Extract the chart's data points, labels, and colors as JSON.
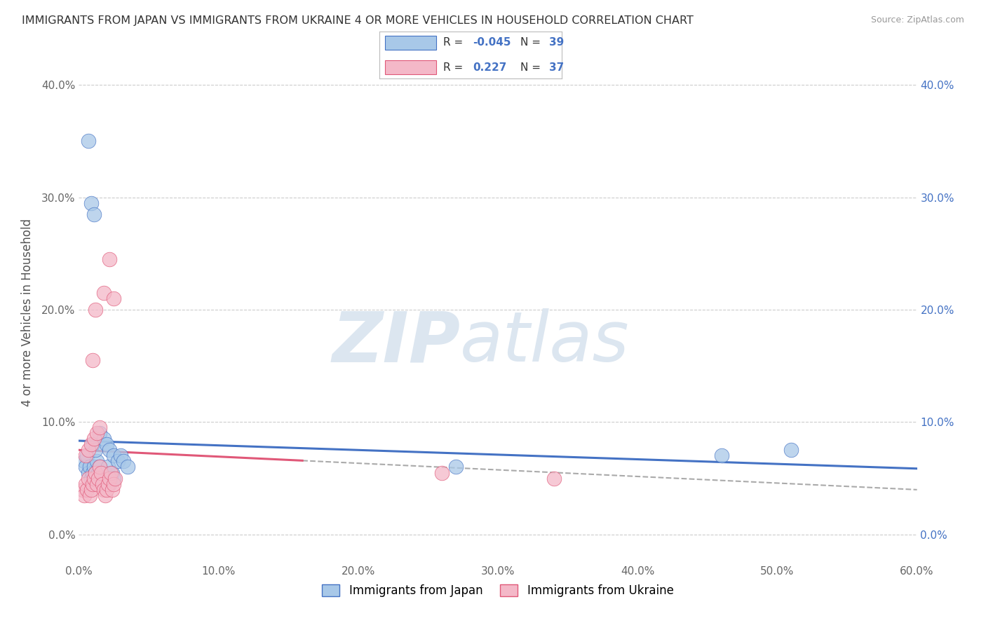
{
  "title": "IMMIGRANTS FROM JAPAN VS IMMIGRANTS FROM UKRAINE 4 OR MORE VEHICLES IN HOUSEHOLD CORRELATION CHART",
  "source": "Source: ZipAtlas.com",
  "ylabel": "4 or more Vehicles in Household",
  "legend_japan": "Immigrants from Japan",
  "legend_ukraine": "Immigrants from Ukraine",
  "R_japan": -0.045,
  "N_japan": 39,
  "R_ukraine": 0.227,
  "N_ukraine": 37,
  "color_japan": "#a8c8e8",
  "color_ukraine": "#f4b8c8",
  "line_color_japan": "#4472c4",
  "line_color_ukraine": "#e05878",
  "japan_x": [
    0.004,
    0.005,
    0.006,
    0.007,
    0.008,
    0.009,
    0.01,
    0.011,
    0.012,
    0.013,
    0.014,
    0.015,
    0.016,
    0.017,
    0.018,
    0.019,
    0.02,
    0.021,
    0.022,
    0.023,
    0.024,
    0.025,
    0.01,
    0.012,
    0.015,
    0.018,
    0.02,
    0.022,
    0.025,
    0.028,
    0.03,
    0.032,
    0.035,
    0.007,
    0.009,
    0.011,
    0.27,
    0.46,
    0.51
  ],
  "japan_y": [
    0.065,
    0.06,
    0.07,
    0.055,
    0.06,
    0.05,
    0.055,
    0.06,
    0.055,
    0.065,
    0.055,
    0.06,
    0.05,
    0.055,
    0.045,
    0.055,
    0.05,
    0.06,
    0.045,
    0.05,
    0.055,
    0.05,
    0.08,
    0.075,
    0.09,
    0.085,
    0.08,
    0.075,
    0.07,
    0.065,
    0.07,
    0.065,
    0.06,
    0.35,
    0.295,
    0.285,
    0.06,
    0.07,
    0.075
  ],
  "ukraine_x": [
    0.003,
    0.004,
    0.005,
    0.006,
    0.007,
    0.008,
    0.009,
    0.01,
    0.011,
    0.012,
    0.013,
    0.014,
    0.015,
    0.016,
    0.017,
    0.018,
    0.019,
    0.02,
    0.021,
    0.022,
    0.023,
    0.024,
    0.025,
    0.026,
    0.005,
    0.007,
    0.009,
    0.011,
    0.013,
    0.015,
    0.01,
    0.012,
    0.018,
    0.022,
    0.025,
    0.26,
    0.34
  ],
  "ukraine_y": [
    0.04,
    0.035,
    0.045,
    0.04,
    0.05,
    0.035,
    0.04,
    0.045,
    0.05,
    0.055,
    0.045,
    0.05,
    0.06,
    0.055,
    0.045,
    0.04,
    0.035,
    0.04,
    0.045,
    0.05,
    0.055,
    0.04,
    0.045,
    0.05,
    0.07,
    0.075,
    0.08,
    0.085,
    0.09,
    0.095,
    0.155,
    0.2,
    0.215,
    0.245,
    0.21,
    0.055,
    0.05
  ],
  "xlim": [
    0.0,
    0.6
  ],
  "ylim": [
    -0.025,
    0.42
  ],
  "yticks": [
    0.0,
    0.1,
    0.2,
    0.3,
    0.4
  ],
  "ytick_labels": [
    "0.0%",
    "10.0%",
    "20.0%",
    "30.0%",
    "40.0%"
  ],
  "xticks": [
    0.0,
    0.1,
    0.2,
    0.3,
    0.4,
    0.5,
    0.6
  ],
  "xtick_labels": [
    "0.0%",
    "10.0%",
    "20.0%",
    "30.0%",
    "40.0%",
    "50.0%",
    "60.0%"
  ],
  "background_color": "#ffffff",
  "grid_color": "#cccccc",
  "watermark_color": "#dce6f0"
}
